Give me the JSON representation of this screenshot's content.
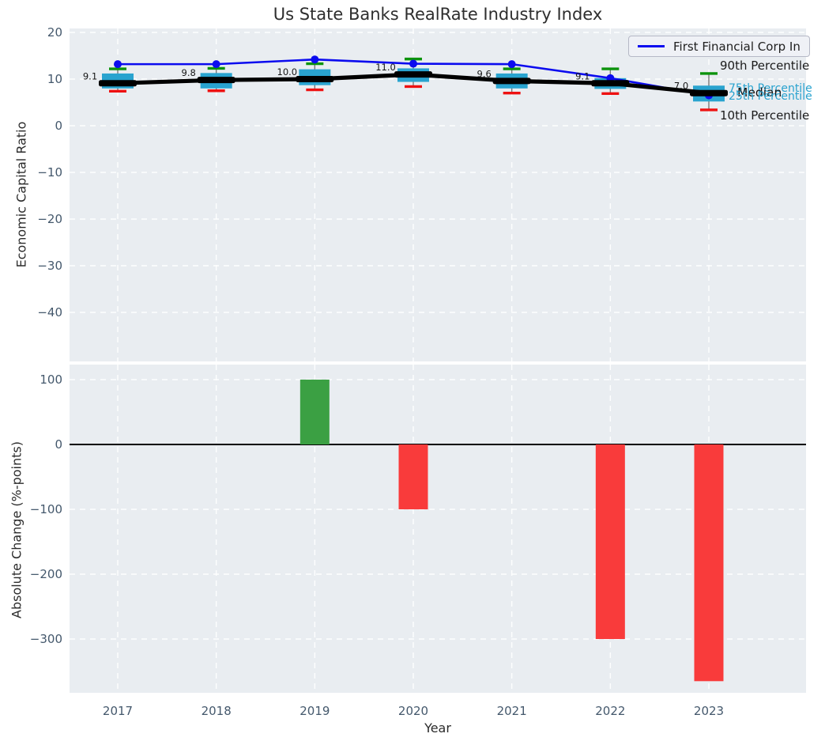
{
  "title": "Us State Banks RealRate Industry Index",
  "xlabel": "Year",
  "legend": {
    "company_label": "First Financial Corp In"
  },
  "annotations": {
    "p90": "90th Percentile",
    "p75": "75th Percentile",
    "median": "Median",
    "p25": "25th Percentile",
    "p10": "10th Percentile"
  },
  "colors": {
    "box_fill": "#29a3cf",
    "whisker_cap_top": "#0c930c",
    "whisker_cap_bottom": "#ee1111",
    "whisker_line": "#777777",
    "median_line": "#000000",
    "company_line": "#0b0bef",
    "bar_positive": "#3ba043",
    "bar_negative": "#f93b3b",
    "plot_background": "#e9edf1",
    "grid_line": "#ffffff",
    "tick_label": "#44586c",
    "zero_line": "#000000",
    "median_value_label": "#161616"
  },
  "chart_data": [
    {
      "type": "boxplot+line",
      "title": "Us State Banks RealRate Industry Index",
      "ylabel": "Economic Capital Ratio",
      "xlabel": "Year",
      "categories": [
        "2017",
        "2018",
        "2019",
        "2020",
        "2021",
        "2022",
        "2023"
      ],
      "yticks": [
        20,
        10,
        0,
        -10,
        -20,
        -30,
        -40
      ],
      "ylim": [
        -50,
        21
      ],
      "grid": true,
      "legend_position": "upper right",
      "percentiles": {
        "p90": [
          12.2,
          12.3,
          13.3,
          14.3,
          12.2,
          12.2,
          11.2
        ],
        "p75": [
          11.2,
          11.3,
          12.1,
          12.3,
          11.2,
          10.2,
          8.6
        ],
        "median": [
          9.1,
          9.8,
          10.0,
          11.0,
          9.6,
          9.1,
          7.0
        ],
        "p25": [
          8.0,
          8.0,
          8.7,
          9.4,
          8.0,
          7.9,
          5.2
        ],
        "p10": [
          7.4,
          7.5,
          7.7,
          8.4,
          7.0,
          6.9,
          3.4
        ]
      },
      "median_labels": [
        "9.1",
        "9.8",
        "10.0",
        "11.0",
        "9.6",
        "9.1",
        "7.0"
      ],
      "company_series": {
        "name": "First Financial Corp In",
        "values": [
          13.2,
          13.2,
          14.2,
          13.3,
          13.2,
          10.2,
          6.5
        ]
      }
    },
    {
      "type": "bar",
      "ylabel": "Absolute Change (%-points)",
      "xlabel": "Year",
      "categories": [
        "2017",
        "2018",
        "2019",
        "2020",
        "2021",
        "2022",
        "2023"
      ],
      "values": [
        null,
        0,
        100,
        -100,
        0,
        -300,
        -365
      ],
      "yticks": [
        100,
        0,
        -100,
        -200,
        -300
      ],
      "ylim": [
        -383,
        122
      ],
      "grid": true
    }
  ]
}
